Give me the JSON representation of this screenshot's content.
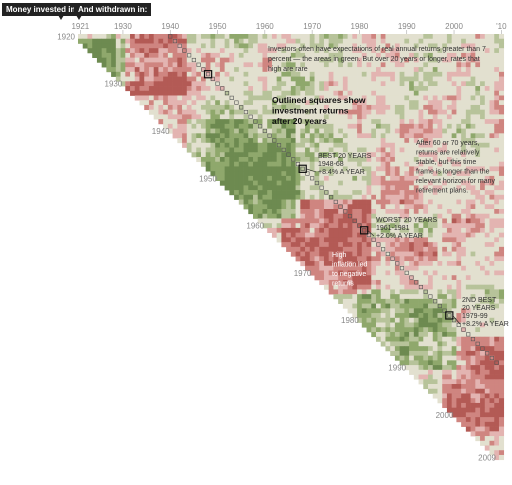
{
  "chart_data": {
    "type": "heatmap",
    "title": "",
    "header_rows": "Money invested in:",
    "header_cols": "And withdrawn in:",
    "x_ticks": [
      "1921",
      "1930",
      "1940",
      "1950",
      "1960",
      "1970",
      "1980",
      "1990",
      "2000",
      "'10"
    ],
    "y_ticks": [
      "1920",
      "1930",
      "1940",
      "1950",
      "1960",
      "1970",
      "1980",
      "1990",
      "2000",
      "2009"
    ],
    "x_range": [
      1921,
      2010
    ],
    "y_range": [
      1920,
      2009
    ],
    "legend_note": "Outlined squares show investment returns after 20 years",
    "annotations": [
      {
        "id": "intro",
        "lines": [
          "Investors often have expectations of real annual returns greater than 7",
          "percent — the areas in green. But over 20 years or longer, rates that",
          "high are rare"
        ]
      },
      {
        "id": "outlined",
        "lines": [
          "Outlined squares show",
          "investment returns",
          "after 20 years"
        ]
      },
      {
        "id": "long-horizon",
        "lines": [
          "After 60 or 70 years,",
          "returns are relatively",
          "stable, but this time",
          "frame is longer than the",
          "relevant horizon for many",
          "retirement plans."
        ]
      },
      {
        "id": "best",
        "lines": [
          "BEST 20 YEARS",
          "1948-68",
          "+8.4% A YEAR"
        ]
      },
      {
        "id": "worst",
        "lines": [
          "WORST 20 YEARS",
          "1961-1981",
          "+2.0% A YEAR"
        ]
      },
      {
        "id": "inflation",
        "lines": [
          "High",
          "inflation led",
          "to negative",
          "returns"
        ]
      },
      {
        "id": "second",
        "lines": [
          "2ND BEST",
          "20 YEARS",
          "1979-99",
          "+8.2% A YEAR"
        ]
      }
    ],
    "highlights": [
      {
        "invested": 1928,
        "withdrawn": 1948,
        "label": null
      },
      {
        "invested": 1948,
        "withdrawn": 1968,
        "label": "best"
      },
      {
        "invested": 1961,
        "withdrawn": 1981,
        "label": "worst"
      },
      {
        "invested": 1979,
        "withdrawn": 1999,
        "label": "second"
      }
    ],
    "colors": {
      "neutral": "#e2e0cf",
      "green_light": "#b7c39a",
      "green": "#8fa86c",
      "green_dark": "#6d8a50",
      "red_light": "#e3b4b1",
      "red": "#cf8580",
      "red_dark": "#b35a55"
    }
  }
}
